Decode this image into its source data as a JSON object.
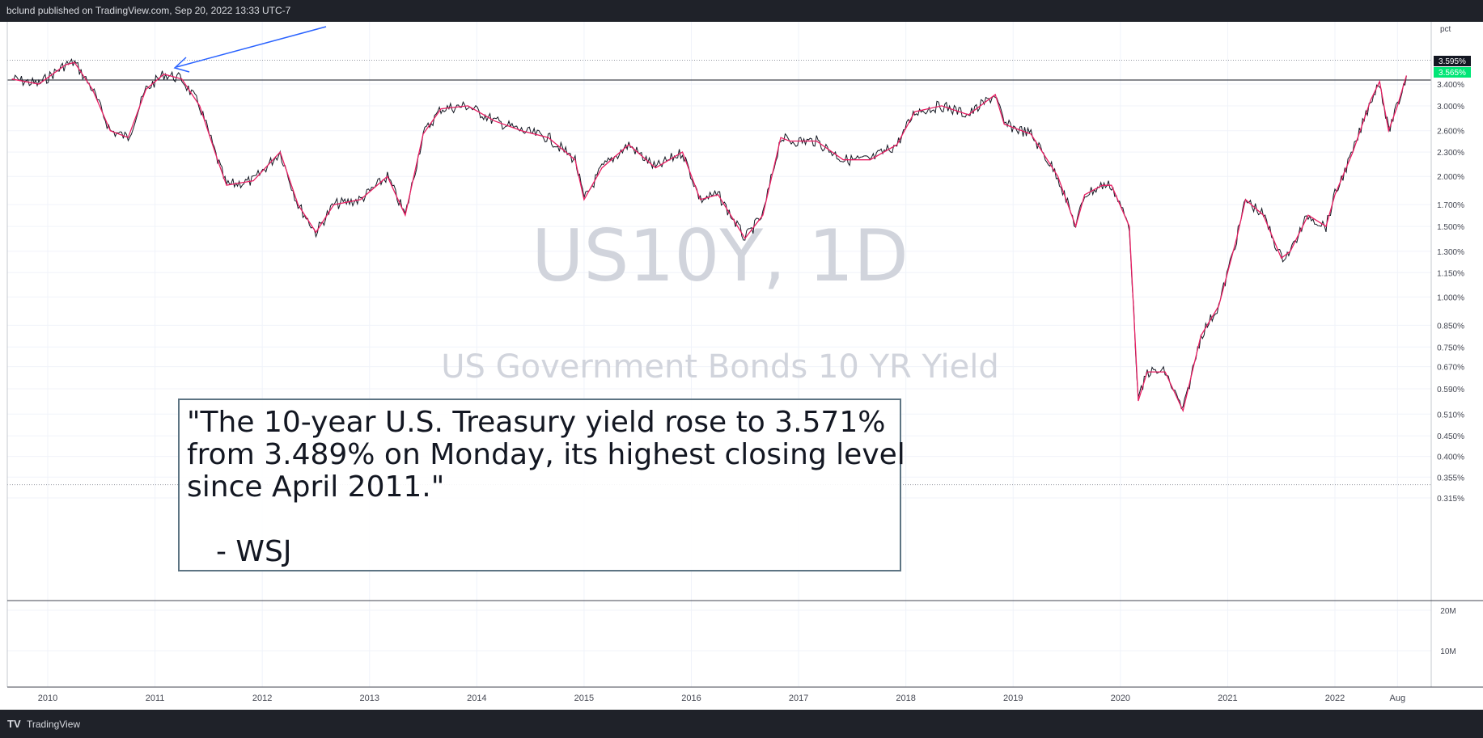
{
  "header": {
    "text": "bclund published on TradingView.com, Sep 20, 2022 13:33 UTC-7"
  },
  "footer": {
    "logo": "TV",
    "brand": "TradingView"
  },
  "watermark": {
    "symbol": "US10Y, 1D",
    "description": "US Government Bonds 10 YR Yield"
  },
  "quote": {
    "line1": "\"The 10-year U.S. Treasury yield rose to 3.571%",
    "line2": "from 3.489% on Monday, its highest closing level",
    "line3": "since April 2011.\"",
    "attribution": "- WSJ"
  },
  "price_axis": {
    "unit": "pct",
    "ticks": [
      "3.400%",
      "3.000%",
      "2.600%",
      "2.300%",
      "2.000%",
      "1.700%",
      "1.500%",
      "1.300%",
      "1.150%",
      "1.000%",
      "0.850%",
      "0.750%",
      "0.670%",
      "0.590%",
      "0.510%",
      "0.450%",
      "0.400%",
      "0.355%",
      "0.315%"
    ],
    "last_price_label": "3.595%",
    "ma_label": "3.565%",
    "ma_label_color": "#00e676"
  },
  "volume_axis": {
    "ticks": [
      "20M",
      "10M"
    ]
  },
  "time_axis": {
    "ticks": [
      "2010",
      "2011",
      "2012",
      "2013",
      "2014",
      "2015",
      "2016",
      "2017",
      "2018",
      "2019",
      "2020",
      "2021",
      "2022",
      "Aug"
    ]
  },
  "colors": {
    "price_line": "#131722",
    "ma_line": "#e91e63",
    "arrow": "#2962ff",
    "quote_border": "#5d7483",
    "watermark": "#d1d4dc"
  },
  "chart_data": {
    "type": "line",
    "scale": "log",
    "x": [
      "2009-09",
      "2009-12",
      "2010-03",
      "2010-04",
      "2010-06",
      "2010-08",
      "2010-10",
      "2010-12",
      "2011-02",
      "2011-04",
      "2011-06",
      "2011-08",
      "2011-09",
      "2011-12",
      "2012-03",
      "2012-05",
      "2012-07",
      "2012-09",
      "2012-12",
      "2013-03",
      "2013-05",
      "2013-07",
      "2013-09",
      "2013-12",
      "2014-03",
      "2014-06",
      "2014-09",
      "2014-12",
      "2015-01",
      "2015-03",
      "2015-06",
      "2015-09",
      "2015-12",
      "2016-02",
      "2016-04",
      "2016-07",
      "2016-09",
      "2016-11",
      "2016-12",
      "2017-03",
      "2017-06",
      "2017-09",
      "2017-12",
      "2018-02",
      "2018-05",
      "2018-08",
      "2018-11",
      "2018-12",
      "2019-03",
      "2019-06",
      "2019-08",
      "2019-09",
      "2019-11",
      "2019-12",
      "2020-02",
      "2020-03",
      "2020-04",
      "2020-06",
      "2020-08",
      "2020-10",
      "2020-12",
      "2021-02",
      "2021-03",
      "2021-05",
      "2021-07",
      "2021-08",
      "2021-10",
      "2021-12",
      "2022-01",
      "2022-03",
      "2022-05",
      "2022-06",
      "2022-07",
      "2022-08",
      "2022-09"
    ],
    "series": [
      {
        "values": [
          3.5,
          3.4,
          3.8,
          3.85,
          3.3,
          2.6,
          2.5,
          3.3,
          3.6,
          3.5,
          3.0,
          2.2,
          1.9,
          1.95,
          2.3,
          1.7,
          1.45,
          1.7,
          1.75,
          2.0,
          1.6,
          2.55,
          2.95,
          3.0,
          2.75,
          2.6,
          2.5,
          2.2,
          1.75,
          2.1,
          2.4,
          2.1,
          2.3,
          1.75,
          1.8,
          1.4,
          1.6,
          2.5,
          2.45,
          2.45,
          2.2,
          2.2,
          2.4,
          2.9,
          3.0,
          2.85,
          3.2,
          2.7,
          2.55,
          2.0,
          1.5,
          1.8,
          1.9,
          1.9,
          1.5,
          0.55,
          0.65,
          0.65,
          0.52,
          0.8,
          0.95,
          1.4,
          1.75,
          1.6,
          1.25,
          1.3,
          1.6,
          1.5,
          1.8,
          2.3,
          3.1,
          3.45,
          2.6,
          3.0,
          3.57
        ]
      }
    ],
    "ylim": [
      0.3,
      3.8
    ],
    "ytick_values": [
      3.4,
      3.0,
      2.6,
      2.3,
      2.0,
      1.7,
      1.5,
      1.3,
      1.15,
      1.0,
      0.85,
      0.75,
      0.67,
      0.59,
      0.51,
      0.45,
      0.4,
      0.355,
      0.315
    ],
    "resistance_level": 3.48,
    "high_level": 3.9,
    "low_level": 0.34,
    "annotations": [
      "\"The 10-year U.S. Treasury yield rose to 3.571% from 3.489% on Monday, its highest closing level since April 2011.\" - WSJ"
    ]
  }
}
